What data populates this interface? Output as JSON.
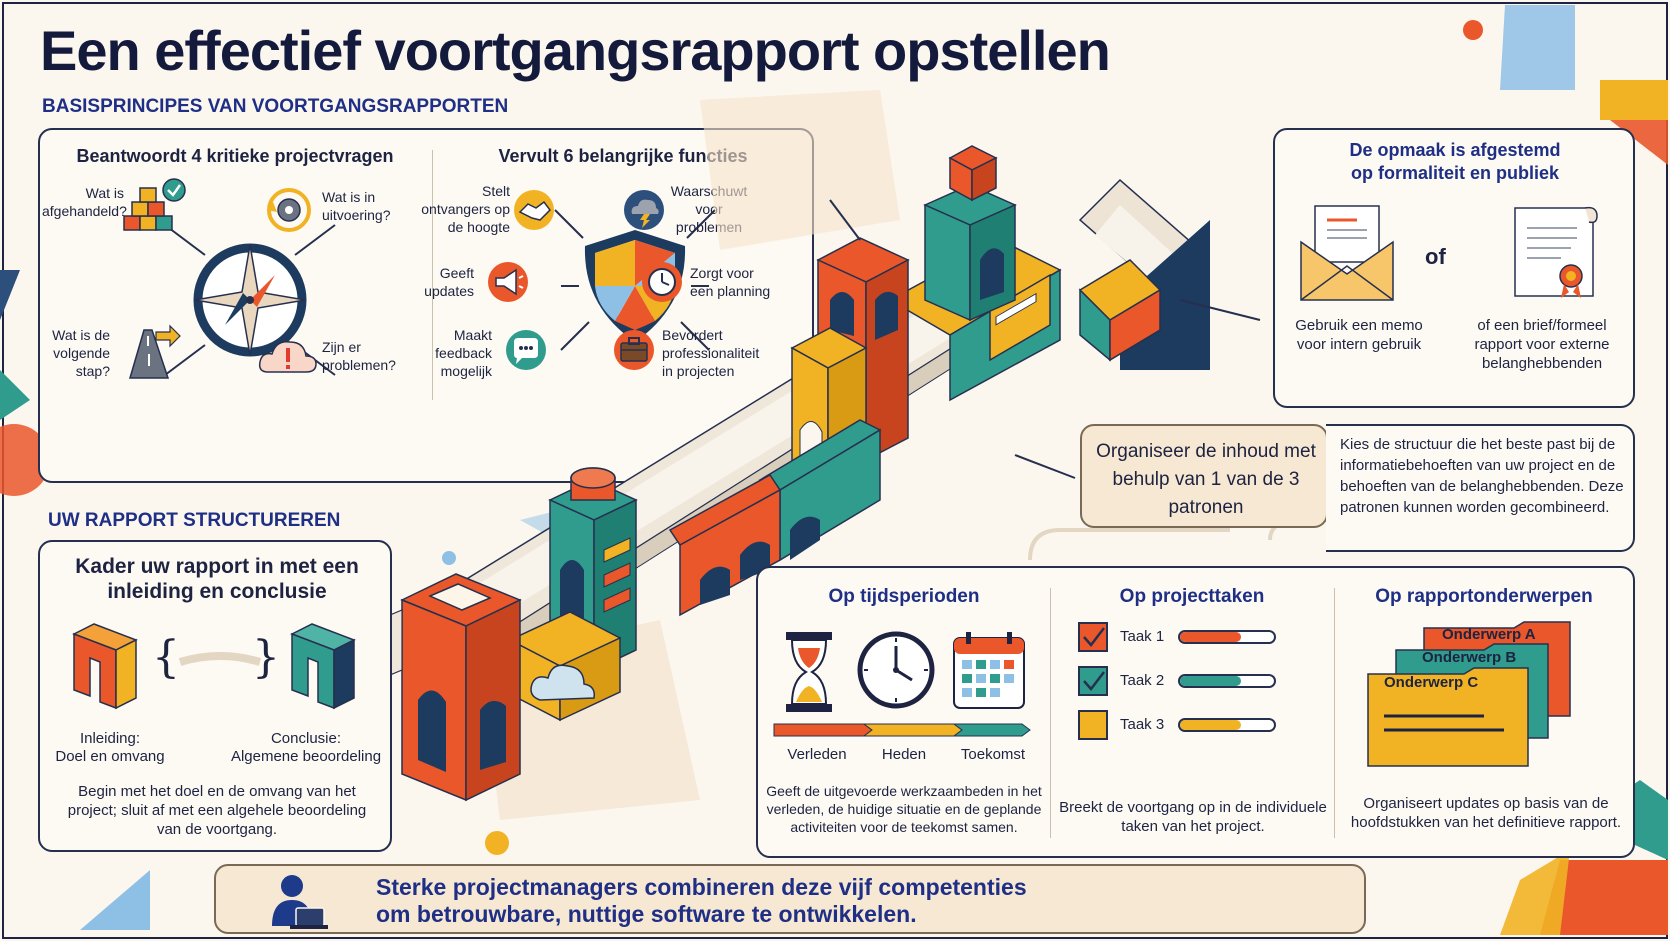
{
  "header": {
    "title": "Een effectief voortgangsrapport opstellen",
    "section1": "BASISPRINCIPES VAN VOORTGANGSRAPPORTEN",
    "section2": "UW RAPPORT STRUCTUREREN"
  },
  "questions": {
    "title": "Beantwoordt 4 kritieke projectvragen",
    "items": [
      "Wat is afgehandeld?",
      "Wat is in uitvoering?",
      "Wat is de volgende stap?",
      "Zijn er problemen?"
    ]
  },
  "functions": {
    "title": "Vervult 6 belangrijke functies",
    "items": [
      "Stelt ontvangers op de hoogte",
      "Waarschuwt voor problemen",
      "Geeft updates",
      "Zorgt voor een planning",
      "Maakt feedback mogelijk",
      "Bevordert professionaliteit in projecten"
    ]
  },
  "format": {
    "title_line1": "De opmaak is afgestemd",
    "title_line2": "op formaliteit en publiek",
    "or": "of",
    "memo": "Gebruik een memo voor intern gebruik",
    "letter": "of een brief/formeel rapport voor externe belanghebbenden"
  },
  "organize": {
    "title": "Organiseer de inhoud met behulp van 1 van de 3 patronen",
    "description": "Kies de structuur die het beste past bij de informatiebehoeften van uw project en de behoeften van de belanghebbenden. Deze patronen kunnen worden gecombineerd."
  },
  "frame": {
    "title": "Kader uw rapport in met een inleiding en conclusie",
    "intro_label": "Inleiding:",
    "intro_value": "Doel en omvang",
    "concl_label": "Conclusie:",
    "concl_value": "Algemene beoordeling",
    "description": "Begin met het doel en de omvang van het project; sluit af met een algehele beoordeling van de voortgang."
  },
  "patterns": {
    "time": {
      "title": "Op tijdsperioden",
      "labels": [
        "Verleden",
        "Heden",
        "Toekomst"
      ],
      "description": "Geeft de uitgevoerde werkzaambeden in het verleden, de huidige situatie en de geplande activiteiten voor de teekomst samen."
    },
    "tasks": {
      "title": "Op projecttaken",
      "items": [
        {
          "label": "Taak 1",
          "progress": 0.65,
          "color": "#e9572b",
          "checked": true
        },
        {
          "label": "Taak 2",
          "progress": 0.65,
          "color": "#2f9c8e",
          "checked": true
        },
        {
          "label": "Taak 3",
          "progress": 0.65,
          "color": "#f1b324",
          "checked": false
        }
      ],
      "description": "Breekt de voortgang op in de individuele taken van het project."
    },
    "topics": {
      "title": "Op rapportonderwerpen",
      "items": [
        "Onderwerp A",
        "Onderwerp B",
        "Onderwerp C"
      ],
      "description": "Organiseert updates op basis van de hoofdstukken van het definitieve rapport."
    }
  },
  "footer": {
    "line1": "Sterke projectmanagers combineren deze vijf competenties",
    "line2": "om betrouwbare, nuttige software te ontwikkelen."
  },
  "colors": {
    "orange": "#e9572b",
    "teal": "#2f9c8e",
    "yellow": "#f1b324",
    "navy": "#1d2a4f",
    "blue": "#1e2f85"
  }
}
